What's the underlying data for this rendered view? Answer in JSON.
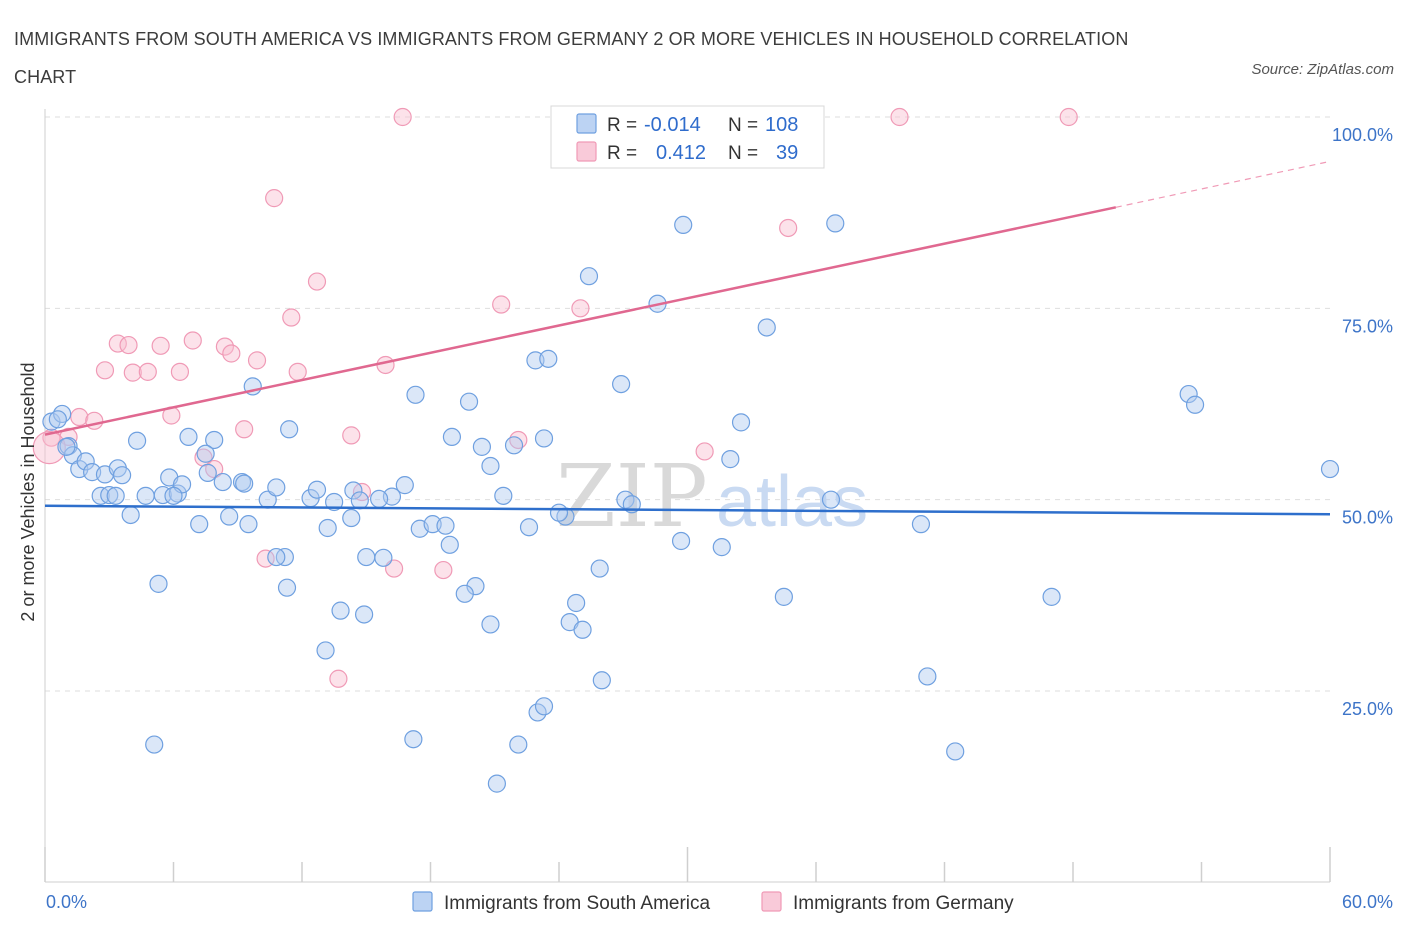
{
  "title": "IMMIGRANTS FROM SOUTH AMERICA VS IMMIGRANTS FROM GERMANY 2 OR MORE VEHICLES IN HOUSEHOLD CORRELATION CHART",
  "source": "Source: ZipAtlas.com",
  "watermark": {
    "zip": "ZIP",
    "atlas": "atlas"
  },
  "legend_box": {
    "rows": [
      {
        "r_label": "R = ",
        "r_value": "-0.014",
        "n_label": "N = ",
        "n_value": "108"
      },
      {
        "r_label": "R = ",
        "r_value": "0.412",
        "n_label": "N = ",
        "n_value": "39"
      }
    ]
  },
  "chart_data": {
    "type": "scatter",
    "title": "IMMIGRANTS FROM SOUTH AMERICA VS IMMIGRANTS FROM GERMANY 2 OR MORE VEHICLES IN HOUSEHOLD CORRELATION CHART",
    "xlabel": "",
    "ylabel": "2 or more Vehicles in Household",
    "xlim": [
      0,
      60
    ],
    "ylim": [
      0,
      100
    ],
    "x_tick_labels": [
      "0.0%",
      "60.0%"
    ],
    "y_tick_labels": [
      "25.0%",
      "50.0%",
      "75.0%",
      "100.0%"
    ],
    "y_ticks": [
      25,
      50,
      75,
      100
    ],
    "grid": true,
    "legend_position": "bottom-center",
    "colors": {
      "series1": "#6fa0e0",
      "series1_line": "#2e6fcc",
      "series2": "#f09ab6",
      "series2_line": "#e06890"
    },
    "series": [
      {
        "name": "Immigrants from South America",
        "r": -0.014,
        "n": 108,
        "trend": {
          "x": [
            0,
            60
          ],
          "y": [
            49.2,
            48.1
          ]
        },
        "points": [
          [
            0.3,
            60.2
          ],
          [
            0.8,
            61.2
          ],
          [
            1.1,
            57.0
          ],
          [
            1.3,
            55.8
          ],
          [
            1.6,
            54.0
          ],
          [
            1.9,
            55.0
          ],
          [
            2.2,
            53.6
          ],
          [
            2.6,
            50.5
          ],
          [
            2.8,
            53.3
          ],
          [
            3.0,
            50.6
          ],
          [
            3.4,
            54.1
          ],
          [
            3.6,
            53.2
          ],
          [
            4.0,
            48.0
          ],
          [
            4.7,
            50.5
          ],
          [
            4.3,
            57.7
          ],
          [
            5.5,
            50.6
          ],
          [
            5.8,
            52.9
          ],
          [
            6.2,
            50.8
          ],
          [
            6.4,
            52.0
          ],
          [
            6.7,
            58.2
          ],
          [
            7.2,
            46.8
          ],
          [
            7.6,
            53.5
          ],
          [
            7.9,
            57.8
          ],
          [
            8.3,
            52.3
          ],
          [
            8.6,
            47.8
          ],
          [
            9.2,
            52.3
          ],
          [
            9.5,
            46.8
          ],
          [
            9.7,
            64.8
          ],
          [
            10.4,
            50.0
          ],
          [
            10.8,
            51.6
          ],
          [
            11.2,
            42.5
          ],
          [
            11.4,
            59.2
          ],
          [
            12.4,
            50.2
          ],
          [
            12.7,
            51.3
          ],
          [
            13.5,
            49.7
          ],
          [
            13.2,
            46.3
          ],
          [
            14.3,
            47.6
          ],
          [
            14.4,
            51.2
          ],
          [
            14.7,
            49.9
          ],
          [
            15.0,
            42.5
          ],
          [
            15.8,
            42.4
          ],
          [
            16.2,
            50.4
          ],
          [
            16.8,
            51.9
          ],
          [
            17.3,
            63.7
          ],
          [
            17.5,
            46.2
          ],
          [
            18.1,
            46.8
          ],
          [
            18.9,
            44.1
          ],
          [
            19.0,
            58.2
          ],
          [
            19.8,
            62.8
          ],
          [
            20.4,
            56.9
          ],
          [
            20.8,
            54.4
          ],
          [
            21.4,
            50.5
          ],
          [
            21.9,
            57.1
          ],
          [
            22.6,
            46.4
          ],
          [
            22.9,
            68.2
          ],
          [
            23.5,
            68.4
          ],
          [
            23.3,
            58.0
          ],
          [
            24.3,
            47.8
          ],
          [
            24.0,
            48.3
          ],
          [
            25.4,
            79.2
          ],
          [
            26.9,
            65.1
          ],
          [
            27.1,
            50.0
          ],
          [
            27.4,
            49.4
          ],
          [
            28.6,
            75.6
          ],
          [
            29.7,
            44.6
          ],
          [
            29.8,
            85.9
          ],
          [
            31.6,
            43.8
          ],
          [
            32.0,
            55.3
          ],
          [
            32.5,
            60.1
          ],
          [
            33.7,
            72.5
          ],
          [
            34.5,
            37.3
          ],
          [
            36.9,
            86.1
          ],
          [
            36.7,
            50.0
          ],
          [
            40.9,
            46.8
          ],
          [
            41.2,
            26.9
          ],
          [
            42.5,
            17.1
          ],
          [
            47.0,
            37.3
          ],
          [
            53.4,
            63.8
          ],
          [
            53.7,
            62.4
          ],
          [
            60.0,
            54.0
          ],
          [
            22.1,
            18.0
          ],
          [
            23.0,
            22.2
          ],
          [
            23.3,
            23.0
          ],
          [
            21.1,
            12.9
          ],
          [
            24.5,
            34.0
          ],
          [
            24.8,
            36.5
          ],
          [
            25.1,
            33.0
          ],
          [
            25.9,
            41.0
          ],
          [
            26.0,
            26.4
          ],
          [
            20.1,
            38.7
          ],
          [
            19.6,
            37.7
          ],
          [
            20.8,
            33.7
          ],
          [
            17.2,
            18.7
          ],
          [
            14.9,
            35.0
          ],
          [
            13.8,
            35.5
          ],
          [
            13.1,
            30.3
          ],
          [
            11.3,
            38.5
          ],
          [
            10.8,
            42.5
          ],
          [
            5.3,
            39.0
          ],
          [
            5.1,
            18.0
          ],
          [
            3.3,
            50.5
          ],
          [
            7.5,
            56.0
          ],
          [
            9.3,
            52.1
          ],
          [
            6.0,
            50.5
          ],
          [
            0.6,
            60.5
          ],
          [
            1.0,
            56.9
          ],
          [
            18.7,
            46.6
          ],
          [
            15.6,
            50.1
          ]
        ]
      },
      {
        "name": "Immigrants from Germany",
        "r": 0.412,
        "n": 39,
        "trend": {
          "x": [
            0,
            50
          ],
          "y": [
            58.5,
            88.2
          ]
        },
        "trend_extension": {
          "x": [
            50,
            60
          ],
          "y": [
            88.2,
            94.2
          ]
        },
        "points": [
          [
            0.3,
            58.1
          ],
          [
            1.1,
            58.2
          ],
          [
            1.6,
            60.8
          ],
          [
            2.3,
            60.3
          ],
          [
            2.8,
            66.9
          ],
          [
            3.4,
            70.4
          ],
          [
            3.9,
            70.2
          ],
          [
            4.1,
            66.6
          ],
          [
            4.8,
            66.7
          ],
          [
            5.4,
            70.1
          ],
          [
            5.9,
            61.0
          ],
          [
            6.3,
            66.7
          ],
          [
            6.9,
            70.8
          ],
          [
            7.4,
            55.5
          ],
          [
            7.9,
            54.0
          ],
          [
            8.4,
            70.0
          ],
          [
            8.7,
            69.1
          ],
          [
            9.3,
            59.2
          ],
          [
            9.9,
            68.2
          ],
          [
            10.3,
            42.3
          ],
          [
            10.7,
            89.4
          ],
          [
            11.5,
            73.8
          ],
          [
            11.8,
            66.7
          ],
          [
            12.7,
            78.5
          ],
          [
            13.7,
            26.6
          ],
          [
            14.3,
            58.4
          ],
          [
            14.8,
            51.0
          ],
          [
            15.9,
            67.6
          ],
          [
            16.3,
            41.0
          ],
          [
            16.7,
            100.0
          ],
          [
            18.6,
            40.8
          ],
          [
            21.3,
            75.5
          ],
          [
            22.1,
            57.8
          ],
          [
            25.0,
            75.0
          ],
          [
            30.8,
            56.3
          ],
          [
            34.7,
            85.5
          ],
          [
            39.9,
            100.0
          ],
          [
            47.8,
            100.0
          ],
          [
            0.2,
            56.8
          ]
        ]
      }
    ]
  }
}
